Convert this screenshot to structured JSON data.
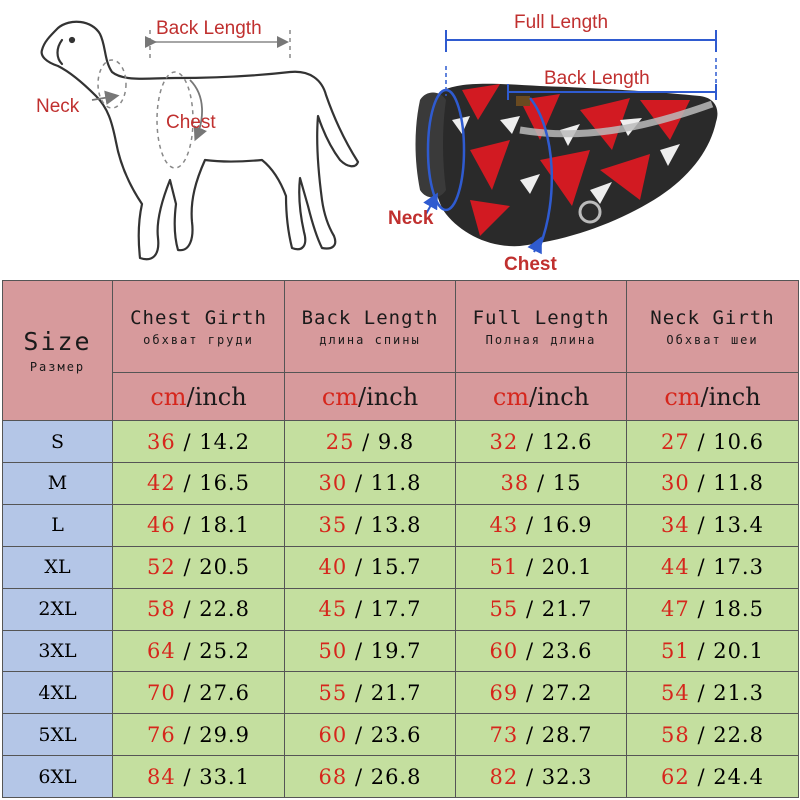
{
  "diagram": {
    "dog_labels": {
      "back_length": "Back Length",
      "neck": "Neck",
      "chest": "Chest"
    },
    "jacket_labels": {
      "full_length": "Full Length",
      "back_length": "Back Length",
      "neck": "Neck",
      "chest": "Chest"
    },
    "colors": {
      "label_red": "#c0302f",
      "arrow_blue": "#2f5bd0",
      "jacket_red": "#d21a22"
    }
  },
  "table": {
    "size_header": {
      "main": "Size",
      "sub": "Размер"
    },
    "columns": [
      {
        "main": "Chest Girth",
        "sub": "обхват груди"
      },
      {
        "main": "Back Length",
        "sub": "длина спины"
      },
      {
        "main": "Full Length",
        "sub": "Полная длина"
      },
      {
        "main": "Neck Girth",
        "sub": "Обхват шеи"
      }
    ],
    "unit_cm": "cm",
    "unit_rest": "/inch",
    "rows": [
      {
        "size": "S",
        "cells": [
          {
            "cm": "36",
            "inch": "14.2"
          },
          {
            "cm": "25",
            "inch": "9.8"
          },
          {
            "cm": "32",
            "inch": "12.6"
          },
          {
            "cm": "27",
            "inch": "10.6"
          }
        ]
      },
      {
        "size": "M",
        "cells": [
          {
            "cm": "42",
            "inch": "16.5"
          },
          {
            "cm": "30",
            "inch": "11.8"
          },
          {
            "cm": "38",
            "inch": "15"
          },
          {
            "cm": "30",
            "inch": "11.8"
          }
        ]
      },
      {
        "size": "L",
        "cells": [
          {
            "cm": "46",
            "inch": "18.1"
          },
          {
            "cm": "35",
            "inch": "13.8"
          },
          {
            "cm": "43",
            "inch": "16.9"
          },
          {
            "cm": "34",
            "inch": "13.4"
          }
        ]
      },
      {
        "size": "XL",
        "cells": [
          {
            "cm": "52",
            "inch": "20.5"
          },
          {
            "cm": "40",
            "inch": "15.7"
          },
          {
            "cm": "51",
            "inch": "20.1"
          },
          {
            "cm": "44",
            "inch": "17.3"
          }
        ]
      },
      {
        "size": "2XL",
        "cells": [
          {
            "cm": "58",
            "inch": "22.8"
          },
          {
            "cm": "45",
            "inch": "17.7"
          },
          {
            "cm": "55",
            "inch": "21.7"
          },
          {
            "cm": "47",
            "inch": "18.5"
          }
        ]
      },
      {
        "size": "3XL",
        "cells": [
          {
            "cm": "64",
            "inch": "25.2"
          },
          {
            "cm": "50",
            "inch": "19.7"
          },
          {
            "cm": "60",
            "inch": "23.6"
          },
          {
            "cm": "51",
            "inch": "20.1"
          }
        ]
      },
      {
        "size": "4XL",
        "cells": [
          {
            "cm": "70",
            "inch": "27.6"
          },
          {
            "cm": "55",
            "inch": "21.7"
          },
          {
            "cm": "69",
            "inch": "27.2"
          },
          {
            "cm": "54",
            "inch": "21.3"
          }
        ]
      },
      {
        "size": "5XL",
        "cells": [
          {
            "cm": "76",
            "inch": "29.9"
          },
          {
            "cm": "60",
            "inch": "23.6"
          },
          {
            "cm": "73",
            "inch": "28.7"
          },
          {
            "cm": "58",
            "inch": "22.8"
          }
        ]
      },
      {
        "size": "6XL",
        "cells": [
          {
            "cm": "84",
            "inch": "33.1"
          },
          {
            "cm": "68",
            "inch": "26.8"
          },
          {
            "cm": "82",
            "inch": "32.3"
          },
          {
            "cm": "62",
            "inch": "24.4"
          }
        ]
      }
    ],
    "colors": {
      "header_bg": "#d79a9c",
      "size_bg": "#b4c6e7",
      "value_bg": "#c4df9f",
      "cm_red": "#d6261c"
    }
  }
}
